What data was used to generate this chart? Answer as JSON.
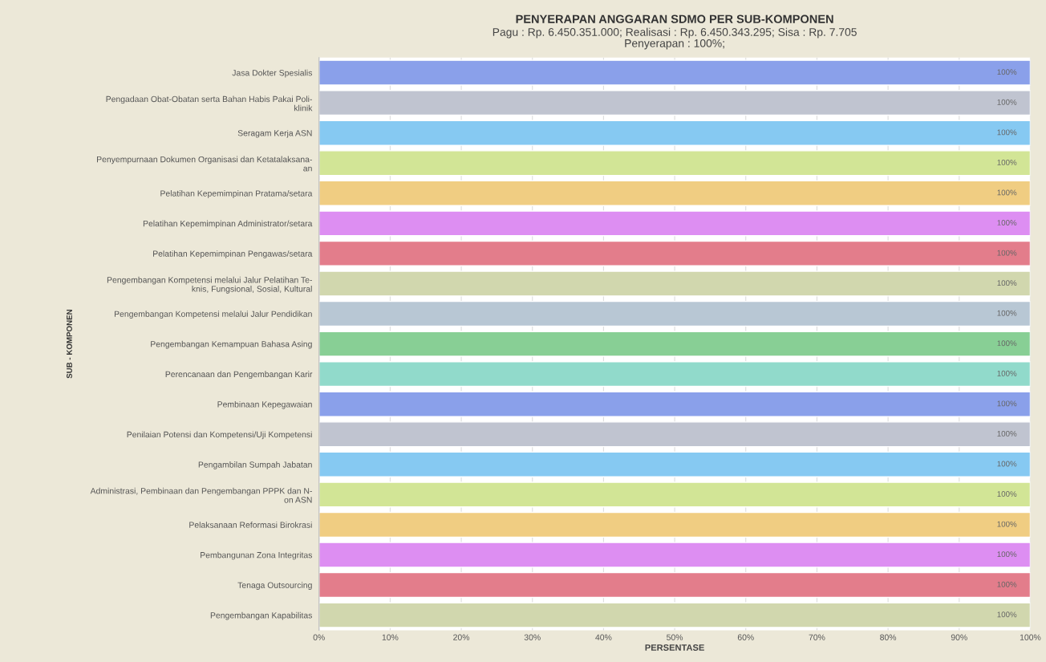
{
  "chart_data": {
    "type": "bar",
    "orientation": "horizontal",
    "title": "PENYERAPAN ANGGARAN SDMO PER SUB-KOMPONEN",
    "subtitle": "Pagu : Rp. 6.450.351.000; Realisasi : Rp. 6.450.343.295; Sisa : Rp. 7.705\nPenyerapan : 100%;",
    "xlabel": "PERSENTASE",
    "ylabel": "SUB - KOMPONEN",
    "categories": [
      "Jasa Dokter Spesialis",
      "Pengadaan Obat-Obatan serta Bahan Habis Pakai Poli-\nklinik",
      "Seragam Kerja ASN",
      "Penyempurnaan Dokumen Organisasi dan Ketatalaksana-\nan",
      "Pelatihan Kepemimpinan Pratama/setara",
      "Pelatihan Kepemimpinan Administrator/setara",
      "Pelatihan Kepemimpinan Pengawas/setara",
      "Pengembangan Kompetensi melalui Jalur Pelatihan Te-\nknis, Fungsional, Sosial, Kultural",
      "Pengembangan Kompetensi melalui Jalur Pendidikan",
      "Pengembangan Kemampuan Bahasa Asing",
      "Perencanaan dan Pengembangan Karir",
      "Pembinaan Kepegawaian",
      "Penilaian Potensi dan Kompetensi/Uji Kompetensi",
      "Pengambilan Sumpah Jabatan",
      "Administrasi, Pembinaan dan Pengembangan PPPK dan N-\non ASN",
      "Pelaksanaan Reformasi Birokrasi",
      "Pembangunan Zona Integritas",
      "Tenaga Outsourcing",
      "Pengembangan Kapabilitas"
    ],
    "values": [
      100,
      100,
      100,
      100,
      100,
      100,
      100,
      100,
      100,
      100,
      100,
      100,
      100,
      100,
      100,
      100,
      100,
      100,
      100
    ],
    "value_labels": [
      "100%",
      "100%",
      "100%",
      "100%",
      "100%",
      "100%",
      "100%",
      "100%",
      "100%",
      "100%",
      "100%",
      "100%",
      "100%",
      "100%",
      "100%",
      "100%",
      "100%",
      "100%",
      "100%"
    ],
    "colors": [
      "#8aa0ea",
      "#c0c4d0",
      "#86c9f2",
      "#d2e596",
      "#f0cd82",
      "#dd8ef2",
      "#e37d8b",
      "#d1d7ae",
      "#b8c7d4",
      "#88cf95",
      "#91dacb",
      "#8aa0ea",
      "#c0c4d0",
      "#86c9f2",
      "#d2e596",
      "#f0cd82",
      "#dd8ef2",
      "#e37d8b",
      "#d1d7ae"
    ],
    "xlim": [
      0,
      100
    ],
    "xticks": [
      {
        "value": 0,
        "label": "0%"
      },
      {
        "value": 10,
        "label": "10%"
      },
      {
        "value": 20,
        "label": "20%"
      },
      {
        "value": 30,
        "label": "30%"
      },
      {
        "value": 40,
        "label": "40%"
      },
      {
        "value": 50,
        "label": "50%"
      },
      {
        "value": 60,
        "label": "60%"
      },
      {
        "value": 70,
        "label": "70%"
      },
      {
        "value": 80,
        "label": "80%"
      },
      {
        "value": 90,
        "label": "90%"
      },
      {
        "value": 100,
        "label": "100%"
      }
    ],
    "grid": "x",
    "legend": false
  }
}
